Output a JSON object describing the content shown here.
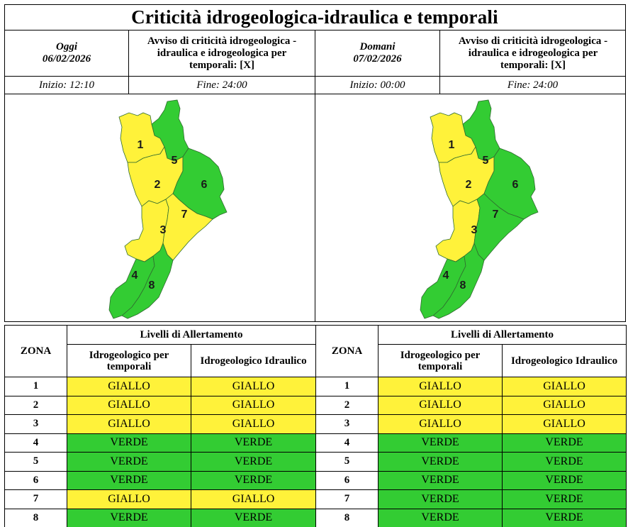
{
  "title": "Criticità idrogeologica-idraulica e temporali",
  "colors": {
    "giallo": "#fff23a",
    "verde": "#33cc33"
  },
  "today": {
    "day_label": "Oggi",
    "date": "06/02/2026",
    "avviso": "Avviso di criticità idrogeologica - idraulica e idrogeologica per temporali: [X]",
    "inizio": "Inizio: 12:10",
    "fine": "Fine: 24:00",
    "map_zones": [
      {
        "id": "1",
        "level": "giallo"
      },
      {
        "id": "2",
        "level": "giallo"
      },
      {
        "id": "3",
        "level": "giallo"
      },
      {
        "id": "4",
        "level": "verde"
      },
      {
        "id": "5",
        "level": "verde"
      },
      {
        "id": "6",
        "level": "verde"
      },
      {
        "id": "7",
        "level": "giallo"
      },
      {
        "id": "8",
        "level": "verde"
      }
    ],
    "table": {
      "zona_header": "ZONA",
      "livelli_header": "Livelli di Allertamento",
      "col1_header": "Idrogeologico per temporali",
      "col2_header": "Idrogeologico Idraulico",
      "rows": [
        {
          "zona": "1",
          "temporali": "GIALLO",
          "idraulico": "GIALLO"
        },
        {
          "zona": "2",
          "temporali": "GIALLO",
          "idraulico": "GIALLO"
        },
        {
          "zona": "3",
          "temporali": "GIALLO",
          "idraulico": "GIALLO"
        },
        {
          "zona": "4",
          "temporali": "VERDE",
          "idraulico": "VERDE"
        },
        {
          "zona": "5",
          "temporali": "VERDE",
          "idraulico": "VERDE"
        },
        {
          "zona": "6",
          "temporali": "VERDE",
          "idraulico": "VERDE"
        },
        {
          "zona": "7",
          "temporali": "GIALLO",
          "idraulico": "GIALLO"
        },
        {
          "zona": "8",
          "temporali": "VERDE",
          "idraulico": "VERDE"
        }
      ]
    }
  },
  "tomorrow": {
    "day_label": "Domani",
    "date": "07/02/2026",
    "avviso": "Avviso di criticità idrogeologica - idraulica e idrogeologica per temporali: [X]",
    "inizio": "Inizio: 00:00",
    "fine": "Fine: 24:00",
    "map_zones": [
      {
        "id": "1",
        "level": "giallo"
      },
      {
        "id": "2",
        "level": "giallo"
      },
      {
        "id": "3",
        "level": "giallo"
      },
      {
        "id": "4",
        "level": "verde"
      },
      {
        "id": "5",
        "level": "verde"
      },
      {
        "id": "6",
        "level": "verde"
      },
      {
        "id": "7",
        "level": "verde"
      },
      {
        "id": "8",
        "level": "verde"
      }
    ],
    "table": {
      "zona_header": "ZONA",
      "livelli_header": "Livelli di Allertamento",
      "col1_header": "Idrogeologico per temporali",
      "col2_header": "Idrogeologico Idraulico",
      "rows": [
        {
          "zona": "1",
          "temporali": "GIALLO",
          "idraulico": "GIALLO"
        },
        {
          "zona": "2",
          "temporali": "GIALLO",
          "idraulico": "GIALLO"
        },
        {
          "zona": "3",
          "temporali": "GIALLO",
          "idraulico": "GIALLO"
        },
        {
          "zona": "4",
          "temporali": "VERDE",
          "idraulico": "VERDE"
        },
        {
          "zona": "5",
          "temporali": "VERDE",
          "idraulico": "VERDE"
        },
        {
          "zona": "6",
          "temporali": "VERDE",
          "idraulico": "VERDE"
        },
        {
          "zona": "7",
          "temporali": "VERDE",
          "idraulico": "VERDE"
        },
        {
          "zona": "8",
          "temporali": "VERDE",
          "idraulico": "VERDE"
        }
      ]
    }
  }
}
